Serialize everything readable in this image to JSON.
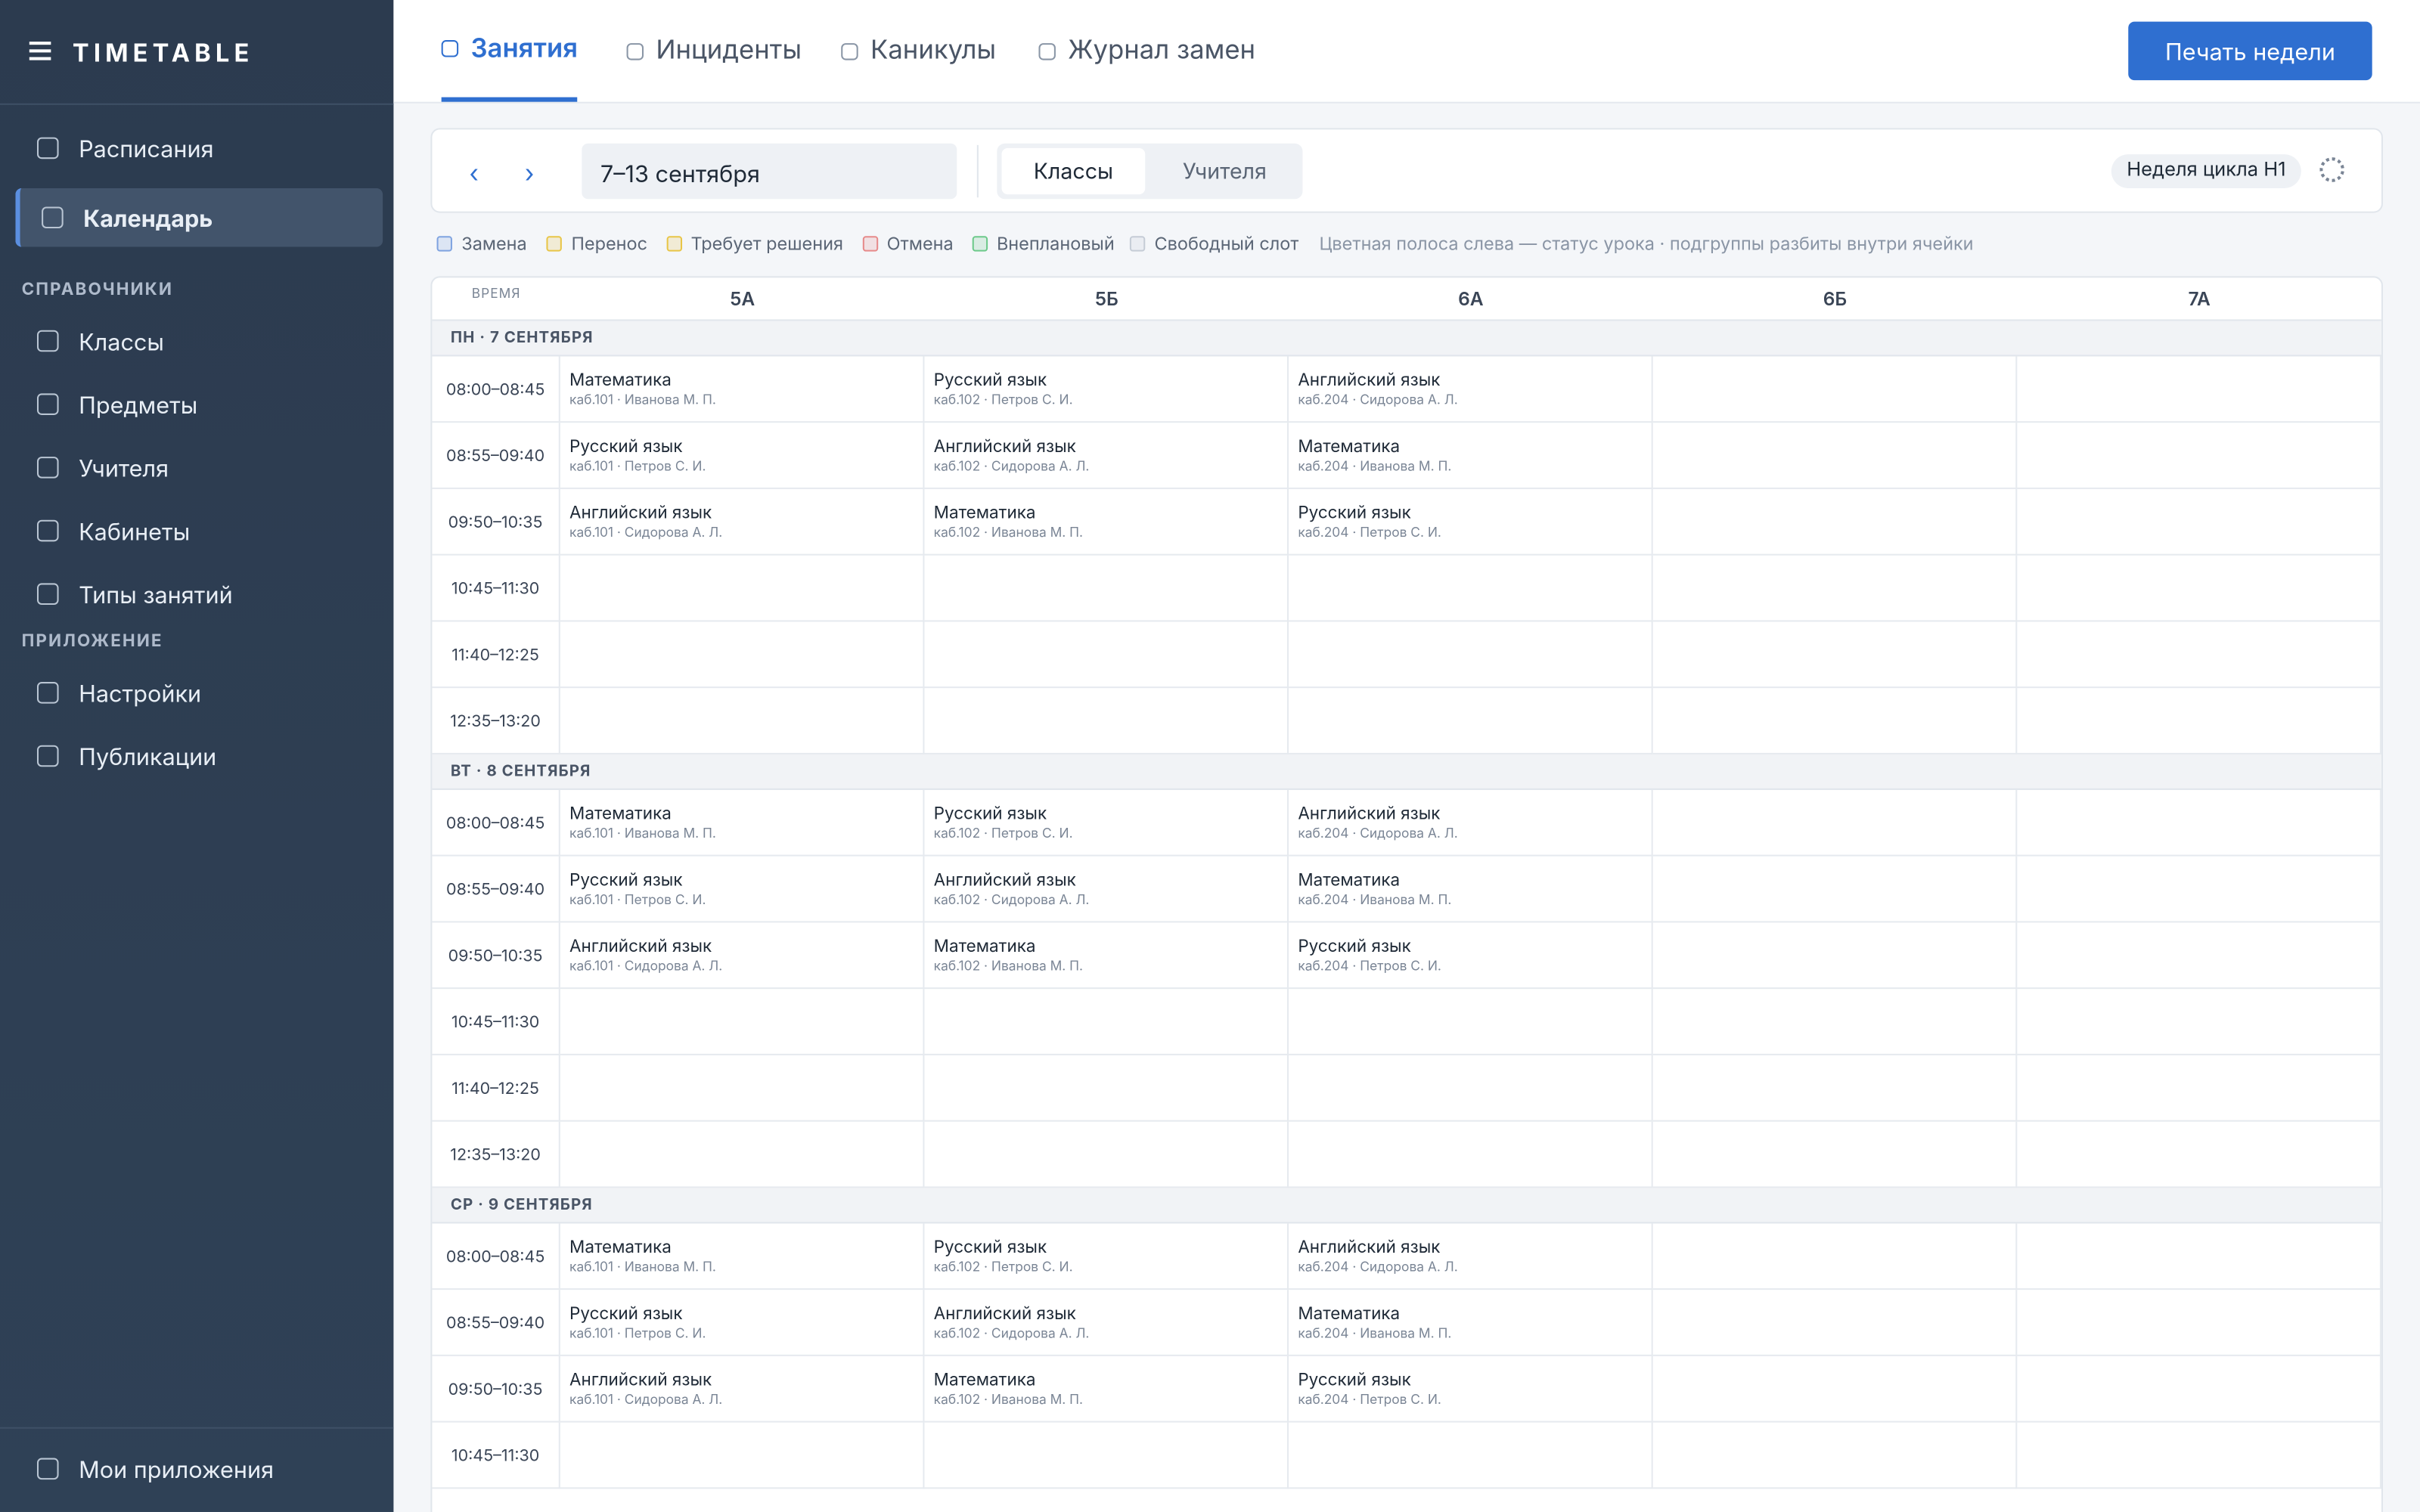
{
  "sidebar": {
    "brand": "TIMETABLE",
    "main": [
      "Расписания",
      "Календарь"
    ],
    "active": 1,
    "sections": [
      {
        "title": "СПРАВОЧНИКИ",
        "items": [
          "Классы",
          "Предметы",
          "Учителя",
          "Кабинеты",
          "Типы занятий"
        ]
      },
      {
        "title": "ПРИЛОЖЕНИЕ",
        "items": [
          "Настройки",
          "Публикации"
        ]
      }
    ],
    "footer": "Мои приложения"
  },
  "tabs": [
    "Занятия",
    "Инциденты",
    "Каникулы",
    "Журнал замен"
  ],
  "print_button": "Печать недели",
  "toolbar": {
    "date_range": "7–13 сентября",
    "view_toggle": [
      "Классы",
      "Учителя"
    ],
    "cycle_week": "Неделя цикла Н1"
  },
  "legend": {
    "items": [
      {
        "label": "Замена",
        "color": "#7fa3e0"
      },
      {
        "label": "Перенос",
        "color": "#e8c547"
      },
      {
        "label": "Требует решения",
        "color": "#e8c547"
      },
      {
        "label": "Отмена",
        "color": "#e68a8a"
      },
      {
        "label": "Внеплановый",
        "color": "#6cc98a"
      },
      {
        "label": "Свободный слот",
        "color": "#c5ccd6"
      }
    ],
    "note": "Цветная полоса слева — статус урока · подгруппы разбиты внутри ячейки"
  },
  "grid": {
    "time_header": "ВРЕМЯ",
    "columns": [
      "5А",
      "5Б",
      "6А",
      "6Б",
      "7А"
    ],
    "days": [
      {
        "title": "ПН · 7 СЕНТЯБРЯ",
        "slots": [
          {
            "time": "08:00–08:45",
            "cells": [
              {
                "subject": "Математика",
                "details": "каб.101 · Иванова М. П."
              },
              {
                "subject": "Русский язык",
                "details": "каб.102 · Петров С. И."
              },
              {
                "subject": "Английский язык",
                "details": "каб.204 · Сидорова А. Л."
              },
              null,
              null
            ]
          },
          {
            "time": "08:55–09:40",
            "cells": [
              {
                "subject": "Русский язык",
                "details": "каб.101 · Петров С. И."
              },
              {
                "subject": "Английский язык",
                "details": "каб.102 · Сидорова А. Л."
              },
              {
                "subject": "Математика",
                "details": "каб.204 · Иванова М. П."
              },
              null,
              null
            ]
          },
          {
            "time": "09:50–10:35",
            "cells": [
              {
                "subject": "Английский язык",
                "details": "каб.101 · Сидорова А. Л."
              },
              {
                "subject": "Математика",
                "details": "каб.102 · Иванова М. П."
              },
              {
                "subject": "Русский язык",
                "details": "каб.204 · Петров С. И."
              },
              null,
              null
            ]
          },
          {
            "time": "10:45–11:30",
            "cells": [
              null,
              null,
              null,
              null,
              null
            ]
          },
          {
            "time": "11:40–12:25",
            "cells": [
              null,
              null,
              null,
              null,
              null
            ]
          },
          {
            "time": "12:35–13:20",
            "cells": [
              null,
              null,
              null,
              null,
              null
            ]
          }
        ]
      },
      {
        "title": "ВТ · 8 СЕНТЯБРЯ",
        "slots": [
          {
            "time": "08:00–08:45",
            "cells": [
              {
                "subject": "Математика",
                "details": "каб.101 · Иванова М. П."
              },
              {
                "subject": "Русский язык",
                "details": "каб.102 · Петров С. И."
              },
              {
                "subject": "Английский язык",
                "details": "каб.204 · Сидорова А. Л."
              },
              null,
              null
            ]
          },
          {
            "time": "08:55–09:40",
            "cells": [
              {
                "subject": "Русский язык",
                "details": "каб.101 · Петров С. И."
              },
              {
                "subject": "Английский язык",
                "details": "каб.102 · Сидорова А. Л."
              },
              {
                "subject": "Математика",
                "details": "каб.204 · Иванова М. П."
              },
              null,
              null
            ]
          },
          {
            "time": "09:50–10:35",
            "cells": [
              {
                "subject": "Английский язык",
                "details": "каб.101 · Сидорова А. Л."
              },
              {
                "subject": "Математика",
                "details": "каб.102 · Иванова М. П."
              },
              {
                "subject": "Русский язык",
                "details": "каб.204 · Петров С. И."
              },
              null,
              null
            ]
          },
          {
            "time": "10:45–11:30",
            "cells": [
              null,
              null,
              null,
              null,
              null
            ]
          },
          {
            "time": "11:40–12:25",
            "cells": [
              null,
              null,
              null,
              null,
              null
            ]
          },
          {
            "time": "12:35–13:20",
            "cells": [
              null,
              null,
              null,
              null,
              null
            ]
          }
        ]
      },
      {
        "title": "СР · 9 СЕНТЯБРЯ",
        "slots": [
          {
            "time": "08:00–08:45",
            "cells": [
              {
                "subject": "Математика",
                "details": "каб.101 · Иванова М. П."
              },
              {
                "subject": "Русский язык",
                "details": "каб.102 · Петров С. И."
              },
              {
                "subject": "Английский язык",
                "details": "каб.204 · Сидорова А. Л."
              },
              null,
              null
            ]
          },
          {
            "time": "08:55–09:40",
            "cells": [
              {
                "subject": "Русский язык",
                "details": "каб.101 · Петров С. И."
              },
              {
                "subject": "Английский язык",
                "details": "каб.102 · Сидорова А. Л."
              },
              {
                "subject": "Математика",
                "details": "каб.204 · Иванова М. П."
              },
              null,
              null
            ]
          },
          {
            "time": "09:50–10:35",
            "cells": [
              {
                "subject": "Английский язык",
                "details": "каб.101 · Сидорова А. Л."
              },
              {
                "subject": "Математика",
                "details": "каб.102 · Иванова М. П."
              },
              {
                "subject": "Русский язык",
                "details": "каб.204 · Петров С. И."
              },
              null,
              null
            ]
          },
          {
            "time": "10:45–11:30",
            "cells": [
              null,
              null,
              null,
              null,
              null
            ]
          }
        ]
      }
    ]
  }
}
